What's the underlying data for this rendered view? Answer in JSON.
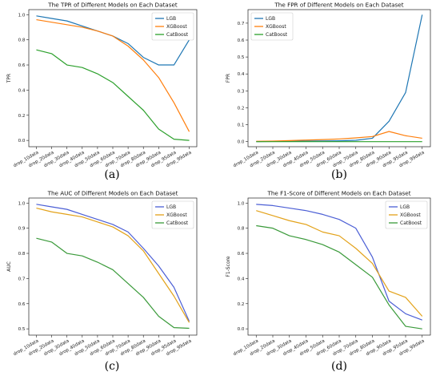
{
  "chart_data": [
    {
      "type": "line",
      "title": "The TPR of Different Models on Each Dataset",
      "xlabel": "",
      "ylabel": "TPR",
      "caption": "(a)",
      "categories": [
        "drop_10data",
        "drop_20data",
        "drop_30data",
        "drop_40data",
        "drop_50data",
        "drop_60data",
        "drop_70data",
        "drop_80data",
        "drop_90data",
        "drop_95data",
        "drop_99data"
      ],
      "ylim": [
        -0.05,
        1.04
      ],
      "yticks": [
        0.0,
        0.2,
        0.4,
        0.6,
        0.8,
        1.0
      ],
      "ytick_labels": [
        "0.0",
        "0.2",
        "0.4",
        "0.6",
        "0.8",
        "1.0"
      ],
      "legend": "top-right",
      "grid": false,
      "series": [
        {
          "name": "LGB",
          "color": "#1f77b4",
          "values": [
            0.99,
            0.97,
            0.95,
            0.91,
            0.87,
            0.83,
            0.77,
            0.66,
            0.6,
            0.6,
            0.8
          ]
        },
        {
          "name": "XGBoost",
          "color": "#ff7f0e",
          "values": [
            0.96,
            0.94,
            0.92,
            0.9,
            0.87,
            0.83,
            0.75,
            0.64,
            0.5,
            0.3,
            0.07
          ]
        },
        {
          "name": "CatBoost",
          "color": "#2ca02c",
          "values": [
            0.72,
            0.69,
            0.6,
            0.58,
            0.53,
            0.46,
            0.35,
            0.24,
            0.09,
            0.01,
            0.0
          ]
        }
      ]
    },
    {
      "type": "line",
      "title": "The FPR of Different Models on Each Dataset",
      "xlabel": "",
      "ylabel": "FPR",
      "caption": "(b)",
      "categories": [
        "drop_10data",
        "drop_20data",
        "drop_30data",
        "drop_40data",
        "drop_50data",
        "drop_60data",
        "drop_70data",
        "drop_80data",
        "drop_90data",
        "drop_95data",
        "drop_99data"
      ],
      "ylim": [
        -0.03,
        0.78
      ],
      "yticks": [
        0.0,
        0.1,
        0.2,
        0.3,
        0.4,
        0.5,
        0.6,
        0.7
      ],
      "ytick_labels": [
        "0.0",
        "0.1",
        "0.2",
        "0.3",
        "0.4",
        "0.5",
        "0.6",
        "0.7"
      ],
      "legend": "top-left",
      "grid": false,
      "series": [
        {
          "name": "LGB",
          "color": "#1f77b4",
          "values": [
            0.0,
            0.001,
            0.002,
            0.003,
            0.004,
            0.005,
            0.008,
            0.02,
            0.12,
            0.29,
            0.75
          ]
        },
        {
          "name": "XGBoost",
          "color": "#ff7f0e",
          "values": [
            0.002,
            0.003,
            0.006,
            0.009,
            0.012,
            0.016,
            0.022,
            0.03,
            0.06,
            0.035,
            0.02
          ]
        },
        {
          "name": "CatBoost",
          "color": "#2ca02c",
          "values": [
            0.0,
            0.0,
            0.0,
            0.0,
            0.0,
            0.0,
            0.0,
            0.0,
            0.0,
            0.0,
            0.0
          ]
        }
      ]
    },
    {
      "type": "line",
      "title": "The AUC of Different Models on Each Dataset",
      "xlabel": "",
      "ylabel": "AUC",
      "caption": "(c)",
      "categories": [
        "drop_10data",
        "drop_20data",
        "drop_30data",
        "drop_40data",
        "drop_50data",
        "drop_60data",
        "drop_70data",
        "drop_80data",
        "drop_90data",
        "drop_95data",
        "drop_99data"
      ],
      "ylim": [
        0.475,
        1.02
      ],
      "yticks": [
        0.5,
        0.6,
        0.7,
        0.8,
        0.9,
        1.0
      ],
      "ytick_labels": [
        "0.5",
        "0.6",
        "0.7",
        "0.8",
        "0.9",
        "1.0"
      ],
      "legend": "top-right",
      "grid": false,
      "series": [
        {
          "name": "LGB",
          "color": "#4c5fd5",
          "values": [
            0.995,
            0.985,
            0.975,
            0.955,
            0.935,
            0.915,
            0.885,
            0.82,
            0.75,
            0.665,
            0.53
          ]
        },
        {
          "name": "XGBoost",
          "color": "#e3a21a",
          "values": [
            0.98,
            0.965,
            0.955,
            0.945,
            0.925,
            0.905,
            0.87,
            0.81,
            0.72,
            0.63,
            0.525
          ]
        },
        {
          "name": "CatBoost",
          "color": "#3a9a3a",
          "values": [
            0.86,
            0.845,
            0.8,
            0.79,
            0.765,
            0.735,
            0.68,
            0.625,
            0.55,
            0.505,
            0.502
          ]
        }
      ]
    },
    {
      "type": "line",
      "title": "The F1-Score of Different Models on Each Dataset",
      "xlabel": "",
      "ylabel": "F1-Score",
      "caption": "(d)",
      "categories": [
        "drop_10data",
        "drop_20data",
        "drop_30data",
        "drop_40data",
        "drop_50data",
        "drop_60data",
        "drop_70data",
        "drop_80data",
        "drop_90data",
        "drop_95data",
        "drop_99data"
      ],
      "ylim": [
        -0.05,
        1.04
      ],
      "yticks": [
        0.0,
        0.2,
        0.4,
        0.6,
        0.8,
        1.0
      ],
      "ytick_labels": [
        "0.0",
        "0.2",
        "0.4",
        "0.6",
        "0.8",
        "1.0"
      ],
      "legend": "top-right",
      "grid": false,
      "series": [
        {
          "name": "LGB",
          "color": "#4c5fd5",
          "values": [
            0.99,
            0.98,
            0.96,
            0.94,
            0.91,
            0.87,
            0.8,
            0.57,
            0.22,
            0.12,
            0.07
          ]
        },
        {
          "name": "XGBoost",
          "color": "#e3a21a",
          "values": [
            0.94,
            0.9,
            0.86,
            0.83,
            0.77,
            0.74,
            0.64,
            0.52,
            0.3,
            0.25,
            0.1
          ]
        },
        {
          "name": "CatBoost",
          "color": "#3a9a3a",
          "values": [
            0.82,
            0.8,
            0.74,
            0.71,
            0.67,
            0.61,
            0.51,
            0.41,
            0.19,
            0.02,
            0.0
          ]
        }
      ]
    }
  ]
}
